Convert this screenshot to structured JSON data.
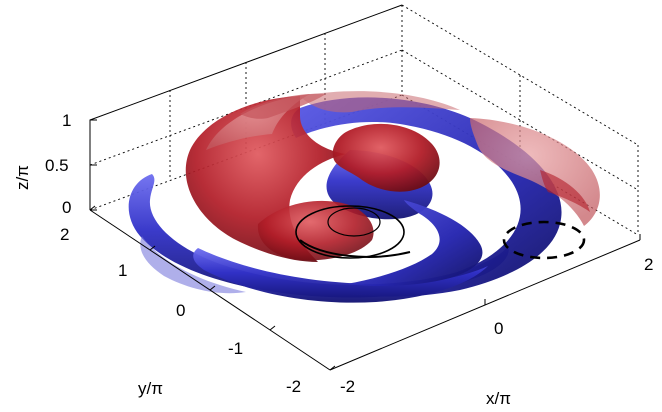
{
  "axes": {
    "x": {
      "label": "x/π",
      "ticks": [
        "-2",
        "0",
        "2"
      ]
    },
    "y": {
      "label": "y/π",
      "ticks": [
        "2",
        "1",
        "0",
        "-1",
        "-2"
      ]
    },
    "z": {
      "label": "z/π",
      "ticks": [
        "1",
        "0.5",
        "0"
      ]
    }
  },
  "surfaces": {
    "positive_color": "#b0202a",
    "negative_color": "#2a2ab8"
  },
  "grid": true,
  "projection": "3d-isometric"
}
